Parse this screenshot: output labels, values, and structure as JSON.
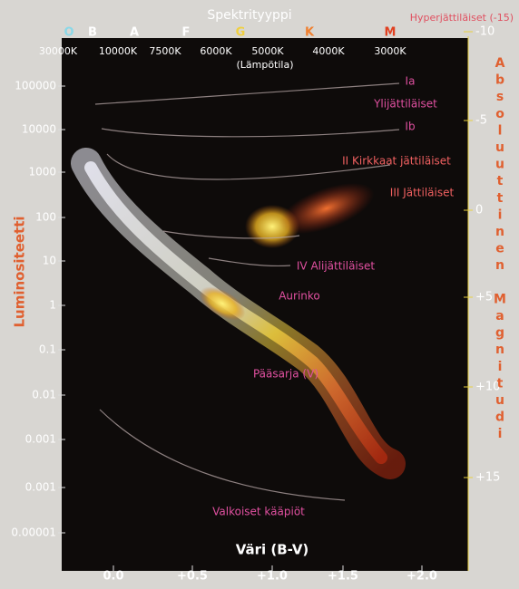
{
  "top_axis": {
    "title": "Spektrityyppi",
    "subtitle": "(Lämpötila)",
    "classes": [
      "O",
      "B",
      "A",
      "F",
      "G",
      "K",
      "M"
    ],
    "temperatures": [
      "30000K",
      "10000K",
      "7500K",
      "6000K",
      "5000K",
      "4000K",
      "3000K"
    ]
  },
  "left_axis": {
    "title": "Luminositeetti",
    "labels": [
      "100000",
      "10000",
      "1000",
      "100",
      "10",
      "1",
      "0.1",
      "0.01",
      "0.001",
      "0.001",
      "0.00001"
    ]
  },
  "right_axis": {
    "title": "Absoluuttinen Magnitudi",
    "top_label": "Hyperjättiläiset (-15)",
    "labels": [
      "-10",
      "-5",
      "0",
      "+5",
      "+10",
      "+15"
    ]
  },
  "bottom_axis": {
    "title": "Väri (B-V)",
    "labels": [
      "0.0",
      "+0.5",
      "+1.0",
      "+1.5",
      "+2.0"
    ]
  },
  "annotations": [
    "Ia",
    "Ylijättiläiset",
    "Ib",
    "II Kirkkaat jättiläiset",
    "III Jättiläiset",
    "IV Alijättiläiset",
    "Aurinko",
    "Pääsarja (V)",
    "Valkoiset kääpiöt"
  ]
}
